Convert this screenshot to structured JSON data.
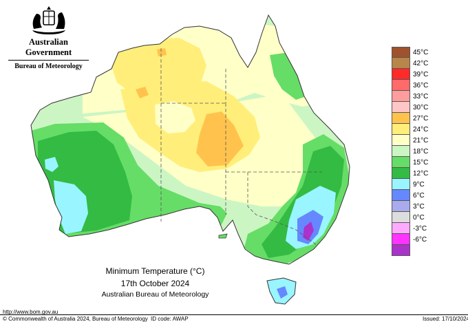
{
  "header": {
    "crest": "coat-of-arms",
    "government": "Australian Government",
    "bureau": "Bureau of Meteorology"
  },
  "legend": [
    {
      "label": "45°C",
      "color": "#a0522d"
    },
    {
      "label": "42°C",
      "color": "#b8864b"
    },
    {
      "label": "39°C",
      "color": "#ff2a2a"
    },
    {
      "label": "36°C",
      "color": "#ff6a6a"
    },
    {
      "label": "33°C",
      "color": "#ff9c9c"
    },
    {
      "label": "30°C",
      "color": "#ffc6c6"
    },
    {
      "label": "27°C",
      "color": "#ffc34d"
    },
    {
      "label": "24°C",
      "color": "#ffee7a"
    },
    {
      "label": "21°C",
      "color": "#ffffc8"
    },
    {
      "label": "18°C",
      "color": "#ccf5c4"
    },
    {
      "label": "15°C",
      "color": "#66dd66"
    },
    {
      "label": "12°C",
      "color": "#33bb44"
    },
    {
      "label": "9°C",
      "color": "#99f5ff"
    },
    {
      "label": "6°C",
      "color": "#6688ff"
    },
    {
      "label": "3°C",
      "color": "#aaaaee"
    },
    {
      "label": "0°C",
      "color": "#dddddd"
    },
    {
      "label": "-3°C",
      "color": "#ffaaff"
    },
    {
      "label": "-6°C",
      "color": "#ff33ff"
    },
    {
      "label": "",
      "color": "#aa33cc"
    }
  ],
  "caption": {
    "title": "Minimum Temperature (°C)",
    "date": "17th October 2024",
    "source": "Australian Bureau of Meteorology"
  },
  "footer": {
    "url": "http://www.bom.gov.au",
    "copyright": "© Commonwealth of Australia 2024, Bureau of Meteorology",
    "id_code": "ID code: AWAP",
    "issued": "Issued: 17/10/2024"
  }
}
